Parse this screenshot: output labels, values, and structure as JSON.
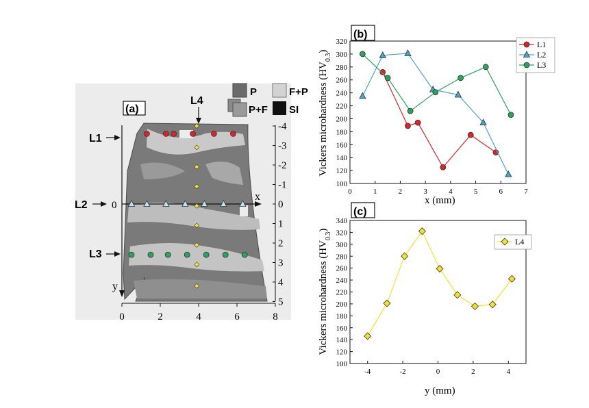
{
  "panel_a": {
    "panel_label": "(a)",
    "legend": [
      {
        "label": "P",
        "color": "#6b6b6b"
      },
      {
        "label": "F+P",
        "color": "#d3d3d3"
      },
      {
        "label": "P+F",
        "color": "#9a9a9a"
      },
      {
        "label": "SI",
        "color": "#0f0f0f"
      }
    ],
    "line_labels": {
      "l1": "L1",
      "l2": "L2",
      "l3": "L3",
      "l4": "L4"
    },
    "x_axis_label": "x",
    "y_axis_label": "y",
    "x_ticks": [
      "0",
      "2",
      "4",
      "6",
      "8"
    ],
    "y_ticks": [
      "-4",
      "-3",
      "-2",
      "-1",
      "0",
      "1",
      "2",
      "3",
      "4",
      "5"
    ],
    "l2_zero_label": "0",
    "marker_colors": {
      "l1": "#d62728",
      "l2": "#4aa3c7",
      "l3": "#2ca25f",
      "l4": "#f2e230"
    }
  },
  "chart_data": [
    {
      "panel_label": "(b)",
      "type": "line",
      "xlabel": "x (mm)",
      "ylabel": "Vickers microhardness (HV",
      "ylabel_sub": "0.3",
      "ylabel_close": ")",
      "xlim": [
        0,
        7
      ],
      "ylim": [
        100,
        320
      ],
      "xticks": [
        0,
        1,
        2,
        3,
        4,
        5,
        6,
        7
      ],
      "yticks": [
        100,
        120,
        140,
        160,
        180,
        200,
        220,
        240,
        260,
        280,
        300,
        320
      ],
      "legend_position": "top-right",
      "series": [
        {
          "name": "L1",
          "color": "#d62728",
          "marker": "circle",
          "x": [
            1.3,
            2.3,
            2.7,
            3.7,
            4.8,
            5.8
          ],
          "y": [
            272,
            189,
            194,
            125,
            175,
            148
          ]
        },
        {
          "name": "L2",
          "color": "#4aa3c7",
          "marker": "triangle",
          "x": [
            0.5,
            1.3,
            2.3,
            3.3,
            4.3,
            5.3,
            6.3
          ],
          "y": [
            235,
            298,
            301,
            245,
            237,
            194,
            114
          ]
        },
        {
          "name": "L3",
          "color": "#2ca25f",
          "marker": "circle",
          "x": [
            0.5,
            1.5,
            2.4,
            3.4,
            4.4,
            5.4,
            6.4
          ],
          "y": [
            300,
            263,
            212,
            241,
            263,
            280,
            206
          ]
        }
      ]
    },
    {
      "panel_label": "(c)",
      "type": "line",
      "xlabel": "y (mm)",
      "ylabel": "Vickers microhardness (HV",
      "ylabel_sub": "0.3",
      "ylabel_close": ")",
      "xlim": [
        -5,
        5
      ],
      "ylim": [
        100,
        340
      ],
      "xticks": [
        -4,
        -2,
        0,
        2,
        4
      ],
      "yticks": [
        100,
        120,
        140,
        160,
        180,
        200,
        220,
        240,
        260,
        280,
        300,
        320,
        340
      ],
      "legend_position": "top-right",
      "series": [
        {
          "name": "L4",
          "color": "#f2e230",
          "marker": "diamond",
          "x": [
            -4,
            -2.9,
            -1.9,
            -0.9,
            0.1,
            1.1,
            2.1,
            3.1,
            4.2
          ],
          "y": [
            146,
            201,
            280,
            322,
            259,
            215,
            196,
            199,
            242
          ]
        }
      ]
    }
  ]
}
